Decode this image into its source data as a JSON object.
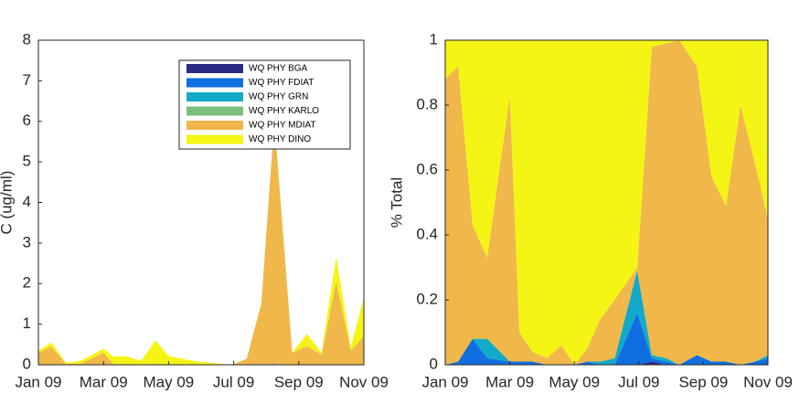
{
  "chart_data": [
    {
      "type": "stacked-area",
      "ylabel": "C (ug/ml)",
      "x": [
        0,
        0.4,
        0.85,
        1.3,
        2.0,
        2.3,
        2.7,
        3.15,
        3.6,
        4.0,
        4.4,
        4.8,
        5.25,
        5.95,
        6.4,
        6.85,
        7.25,
        7.8,
        8.25,
        8.7,
        9.15,
        9.6,
        10
      ],
      "xlim": [
        0,
        10
      ],
      "xticks": [
        {
          "value": 0,
          "label": "Jan 09"
        },
        {
          "value": 2,
          "label": "Mar 09"
        },
        {
          "value": 4,
          "label": "May 09"
        },
        {
          "value": 6,
          "label": "Jul 09"
        },
        {
          "value": 8,
          "label": "Sep 09"
        },
        {
          "value": 10,
          "label": "Nov 09"
        }
      ],
      "ylim": [
        0,
        8
      ],
      "yticks": [
        0,
        1,
        2,
        3,
        4,
        5,
        6,
        7,
        8
      ],
      "legend": "upper right",
      "series": [
        {
          "name": "WQ PHY BGA",
          "color": "#2b2a85",
          "values": [
            0,
            0,
            0,
            0,
            0,
            0,
            0,
            0,
            0,
            0,
            0,
            0,
            0,
            0,
            0,
            0,
            0,
            0,
            0,
            0,
            0,
            0,
            0
          ]
        },
        {
          "name": "WQ PHY FDIAT",
          "color": "#0f6fe0",
          "values": [
            0,
            0,
            0,
            0,
            0,
            0,
            0,
            0,
            0,
            0,
            0,
            0,
            0,
            0,
            0,
            0.01,
            0.02,
            0,
            0.01,
            0,
            0.01,
            0,
            0.01
          ]
        },
        {
          "name": "WQ PHY GRN",
          "color": "#13a9c8",
          "values": [
            0,
            0,
            0,
            0,
            0,
            0,
            0,
            0,
            0,
            0,
            0,
            0,
            0,
            0,
            0,
            0,
            0,
            0,
            0,
            0,
            0,
            0,
            0
          ]
        },
        {
          "name": "WQ PHY KARLO",
          "color": "#7cbf7b",
          "values": [
            0,
            0,
            0,
            0,
            0,
            0,
            0,
            0,
            0,
            0,
            0,
            0,
            0,
            0,
            0,
            0,
            0,
            0,
            0,
            0,
            0,
            0,
            0
          ]
        },
        {
          "name": "WQ PHY MDIAT",
          "color": "#f0b84a",
          "values": [
            0.3,
            0.45,
            0.02,
            0.03,
            0.3,
            0.02,
            0.01,
            0,
            0.02,
            0,
            0.01,
            0.01,
            0,
            0,
            0.15,
            1.5,
            6.0,
            0.3,
            0.45,
            0.25,
            2.05,
            0.35,
            0.7
          ]
        },
        {
          "name": "WQ PHY DINO",
          "color": "#f5f515",
          "values": [
            0.05,
            0.1,
            0.03,
            0.07,
            0.1,
            0.18,
            0.2,
            0.1,
            0.58,
            0.22,
            0.14,
            0.08,
            0.05,
            0,
            0,
            0,
            0,
            0,
            0.3,
            0.05,
            0.6,
            0.1,
            0.95
          ]
        }
      ]
    },
    {
      "type": "stacked-area",
      "ylabel": "% Total",
      "x": [
        0,
        0.4,
        0.85,
        1.3,
        2.0,
        2.3,
        2.7,
        3.15,
        3.6,
        4.0,
        4.4,
        4.8,
        5.25,
        5.95,
        6.4,
        6.85,
        7.25,
        7.8,
        8.25,
        8.7,
        9.15,
        9.6,
        10
      ],
      "xlim": [
        0,
        10
      ],
      "xticks": [
        {
          "value": 0,
          "label": "Jan 09"
        },
        {
          "value": 2,
          "label": "Mar 09"
        },
        {
          "value": 4,
          "label": "May 09"
        },
        {
          "value": 6,
          "label": "Jul 09"
        },
        {
          "value": 8,
          "label": "Sep 09"
        },
        {
          "value": 10,
          "label": "Nov 09"
        }
      ],
      "ylim": [
        0,
        1
      ],
      "yticks": [
        0,
        0.2,
        0.4,
        0.6,
        0.8,
        1
      ],
      "series": [
        {
          "color": "#2b2a85",
          "values": [
            0,
            0,
            0,
            0,
            0,
            0,
            0,
            0,
            0,
            0,
            0,
            0,
            0,
            0,
            0.01,
            0,
            0,
            0,
            0,
            0,
            0,
            0,
            0
          ]
        },
        {
          "color": "#0f6fe0",
          "values": [
            0,
            0.01,
            0.08,
            0.02,
            0.01,
            0.01,
            0.01,
            0,
            0,
            0,
            0.01,
            0,
            0,
            0.16,
            0.01,
            0.01,
            0,
            0.03,
            0.01,
            0.01,
            0,
            0.01,
            0.02
          ]
        },
        {
          "color": "#13a9c8",
          "values": [
            0,
            0,
            0,
            0.06,
            0,
            0,
            0,
            0,
            0,
            0,
            0,
            0.01,
            0.02,
            0.13,
            0.01,
            0.01,
            0,
            0,
            0,
            0,
            0,
            0,
            0.01
          ]
        },
        {
          "color": "#7cbf7b",
          "values": [
            0,
            0,
            0,
            0,
            0,
            0,
            0,
            0,
            0,
            0,
            0,
            0,
            0,
            0,
            0,
            0,
            0,
            0,
            0,
            0,
            0,
            0,
            0
          ]
        },
        {
          "color": "#f0b84a",
          "values": [
            0.88,
            0.91,
            0.35,
            0.25,
            0.82,
            0.09,
            0.03,
            0.02,
            0.06,
            0,
            0.04,
            0.13,
            0.18,
            0.01,
            0.95,
            0.97,
            1.0,
            0.89,
            0.57,
            0.48,
            0.8,
            0.61,
            0.42
          ]
        },
        {
          "color": "#f5f515",
          "values": [
            0.12,
            0.08,
            0.57,
            0.67,
            0.17,
            0.9,
            0.96,
            0.98,
            0.94,
            1,
            0.95,
            0.86,
            0.8,
            0.7,
            0.02,
            0.01,
            0,
            0.08,
            0.42,
            0.51,
            0.2,
            0.38,
            0.55
          ]
        }
      ]
    }
  ]
}
